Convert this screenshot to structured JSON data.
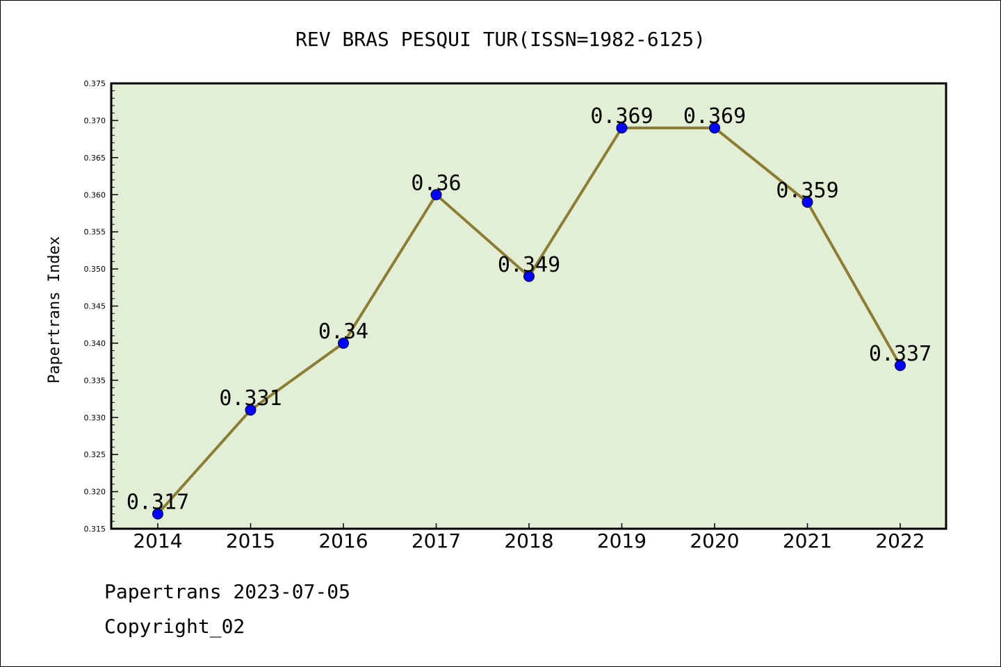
{
  "chart_data": {
    "type": "line",
    "title": "REV BRAS PESQUI TUR(ISSN=1982-6125)",
    "xlabel": "",
    "ylabel": "Papertrans Index",
    "categories": [
      "2014",
      "2015",
      "2016",
      "2017",
      "2018",
      "2019",
      "2020",
      "2021",
      "2022"
    ],
    "series": [
      {
        "values": [
          0.317,
          0.331,
          0.34,
          0.36,
          0.349,
          0.369,
          0.369,
          0.359,
          0.337
        ],
        "labels": [
          "0.317",
          "0.331",
          "0.34",
          "0.36",
          "0.349",
          "0.369",
          "0.369",
          "0.359",
          "0.337"
        ]
      }
    ],
    "ylim": [
      0.315,
      0.375
    ],
    "yticks": [
      "0.315",
      "0.320",
      "0.325",
      "0.330",
      "0.335",
      "0.340",
      "0.345",
      "0.350",
      "0.355",
      "0.360",
      "0.365",
      "0.370",
      "0.375"
    ],
    "grid": false,
    "legend": "none",
    "colors": {
      "plot_background": "#e2efd5",
      "line": "#8b7d36",
      "marker": "#0000ff"
    }
  },
  "footer": {
    "line1": "Papertrans 2023-07-05",
    "line2": "Copyright_02"
  }
}
